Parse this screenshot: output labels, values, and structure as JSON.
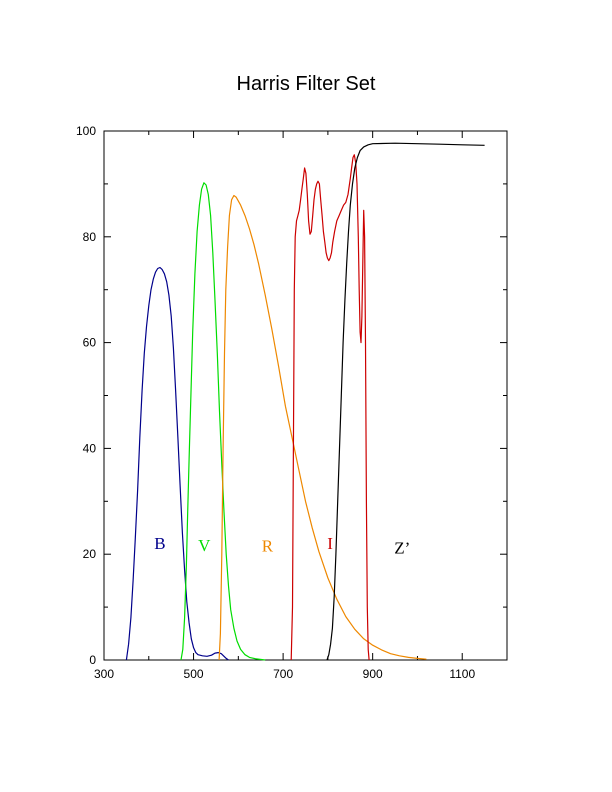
{
  "chart_data": {
    "type": "line",
    "title": "Harris Filter Set",
    "xlabel": "",
    "ylabel": "",
    "xlim": [
      300,
      1200
    ],
    "ylim": [
      0,
      100
    ],
    "x_ticks": [
      300,
      500,
      700,
      900,
      1100
    ],
    "y_ticks": [
      0,
      20,
      40,
      60,
      80,
      100
    ],
    "grid": false,
    "legend": "inline labels",
    "series": [
      {
        "name": "B",
        "color": "#00008b",
        "label_at": [
          425,
          21
        ],
        "points": [
          [
            350,
            0
          ],
          [
            355,
            3
          ],
          [
            360,
            8
          ],
          [
            365,
            15
          ],
          [
            370,
            23
          ],
          [
            375,
            32
          ],
          [
            380,
            42
          ],
          [
            385,
            51
          ],
          [
            390,
            58
          ],
          [
            395,
            63
          ],
          [
            400,
            67
          ],
          [
            405,
            70
          ],
          [
            410,
            72
          ],
          [
            415,
            73.3
          ],
          [
            420,
            74
          ],
          [
            425,
            74.2
          ],
          [
            430,
            73.8
          ],
          [
            435,
            73
          ],
          [
            440,
            71.5
          ],
          [
            445,
            69
          ],
          [
            450,
            65
          ],
          [
            455,
            59
          ],
          [
            460,
            51
          ],
          [
            465,
            42
          ],
          [
            470,
            33
          ],
          [
            475,
            24
          ],
          [
            480,
            17
          ],
          [
            485,
            11
          ],
          [
            490,
            7
          ],
          [
            495,
            4
          ],
          [
            500,
            2.3
          ],
          [
            505,
            1.4
          ],
          [
            510,
            1
          ],
          [
            520,
            0.8
          ],
          [
            530,
            0.7
          ],
          [
            540,
            0.9
          ],
          [
            548,
            1.3
          ],
          [
            555,
            1.4
          ],
          [
            562,
            1.2
          ],
          [
            568,
            0.7
          ],
          [
            573,
            0.3
          ],
          [
            578,
            0
          ]
        ]
      },
      {
        "name": "V",
        "color": "#00dd00",
        "label_at": [
          524,
          20.6
        ],
        "points": [
          [
            472,
            0
          ],
          [
            476,
            2
          ],
          [
            480,
            8
          ],
          [
            484,
            18
          ],
          [
            487,
            28
          ],
          [
            490,
            38
          ],
          [
            494,
            50
          ],
          [
            498,
            62
          ],
          [
            503,
            73
          ],
          [
            508,
            81
          ],
          [
            513,
            86
          ],
          [
            518,
            89
          ],
          [
            523,
            90.2
          ],
          [
            528,
            89.8
          ],
          [
            533,
            88
          ],
          [
            538,
            84
          ],
          [
            543,
            77
          ],
          [
            548,
            68
          ],
          [
            553,
            58
          ],
          [
            558,
            47
          ],
          [
            563,
            37
          ],
          [
            568,
            28
          ],
          [
            573,
            20
          ],
          [
            578,
            14
          ],
          [
            583,
            9.5
          ],
          [
            590,
            6
          ],
          [
            597,
            3.6
          ],
          [
            605,
            2
          ],
          [
            615,
            1
          ],
          [
            625,
            0.5
          ],
          [
            640,
            0.2
          ],
          [
            660,
            0
          ]
        ]
      },
      {
        "name": "R",
        "color": "#ee8800",
        "label_at": [
          665,
          20.5
        ],
        "points": [
          [
            557,
            0
          ],
          [
            560,
            5
          ],
          [
            563,
            20
          ],
          [
            566,
            40
          ],
          [
            569,
            58
          ],
          [
            572,
            70
          ],
          [
            576,
            78
          ],
          [
            580,
            84
          ],
          [
            585,
            87
          ],
          [
            590,
            87.8
          ],
          [
            595,
            87.5
          ],
          [
            605,
            86
          ],
          [
            615,
            84
          ],
          [
            625,
            81.5
          ],
          [
            635,
            78.5
          ],
          [
            645,
            75
          ],
          [
            660,
            69
          ],
          [
            675,
            62.5
          ],
          [
            690,
            55.5
          ],
          [
            705,
            48
          ],
          [
            720,
            42
          ],
          [
            735,
            36
          ],
          [
            750,
            30
          ],
          [
            765,
            25
          ],
          [
            780,
            20.5
          ],
          [
            800,
            15.5
          ],
          [
            820,
            11.5
          ],
          [
            840,
            8.2
          ],
          [
            860,
            5.8
          ],
          [
            880,
            4
          ],
          [
            900,
            2.8
          ],
          [
            920,
            1.9
          ],
          [
            940,
            1.2
          ],
          [
            960,
            0.8
          ],
          [
            980,
            0.5
          ],
          [
            1000,
            0.3
          ],
          [
            1020,
            0.15
          ]
        ]
      },
      {
        "name": "I",
        "color": "#cc0000",
        "label_at": [
          805,
          21
        ],
        "points": [
          [
            718,
            0
          ],
          [
            721,
            10
          ],
          [
            723,
            40
          ],
          [
            725,
            70
          ],
          [
            727,
            80
          ],
          [
            730,
            83
          ],
          [
            733,
            84
          ],
          [
            736,
            85
          ],
          [
            739,
            87
          ],
          [
            742,
            89
          ],
          [
            745,
            91
          ],
          [
            748,
            93
          ],
          [
            751,
            92
          ],
          [
            754,
            88
          ],
          [
            757,
            83
          ],
          [
            760,
            80.5
          ],
          [
            763,
            81
          ],
          [
            766,
            84
          ],
          [
            769,
            87
          ],
          [
            772,
            89
          ],
          [
            775,
            90
          ],
          [
            778,
            90.5
          ],
          [
            781,
            90
          ],
          [
            784,
            87
          ],
          [
            787,
            84
          ],
          [
            790,
            81
          ],
          [
            793,
            79
          ],
          [
            796,
            77
          ],
          [
            799,
            76
          ],
          [
            802,
            75.5
          ],
          [
            805,
            76
          ],
          [
            808,
            77
          ],
          [
            811,
            79
          ],
          [
            815,
            81
          ],
          [
            820,
            83
          ],
          [
            825,
            84
          ],
          [
            830,
            85
          ],
          [
            835,
            86
          ],
          [
            840,
            86.5
          ],
          [
            845,
            88
          ],
          [
            850,
            91
          ],
          [
            853,
            93
          ],
          [
            856,
            95
          ],
          [
            859,
            95.5
          ],
          [
            862,
            94
          ],
          [
            865,
            90
          ],
          [
            868,
            80
          ],
          [
            870,
            70
          ],
          [
            872,
            62
          ],
          [
            874,
            60
          ],
          [
            876,
            65
          ],
          [
            878,
            75
          ],
          [
            880,
            85
          ],
          [
            882,
            80
          ],
          [
            884,
            60
          ],
          [
            886,
            30
          ],
          [
            888,
            10
          ],
          [
            890,
            2
          ],
          [
            892,
            0
          ]
        ]
      },
      {
        "name": "Z’",
        "color": "#000000",
        "label_at": [
          966,
          20.1
        ],
        "points": [
          [
            798,
            0
          ],
          [
            802,
            1
          ],
          [
            806,
            3
          ],
          [
            810,
            6
          ],
          [
            814,
            12
          ],
          [
            818,
            20
          ],
          [
            822,
            30
          ],
          [
            826,
            40
          ],
          [
            830,
            50
          ],
          [
            834,
            60
          ],
          [
            838,
            68
          ],
          [
            842,
            75
          ],
          [
            846,
            81
          ],
          [
            850,
            86
          ],
          [
            855,
            90
          ],
          [
            860,
            93
          ],
          [
            866,
            95
          ],
          [
            872,
            96.3
          ],
          [
            880,
            97
          ],
          [
            890,
            97.4
          ],
          [
            900,
            97.6
          ],
          [
            950,
            97.7
          ],
          [
            1000,
            97.6
          ],
          [
            1050,
            97.5
          ],
          [
            1100,
            97.4
          ],
          [
            1150,
            97.3
          ]
        ]
      }
    ]
  }
}
